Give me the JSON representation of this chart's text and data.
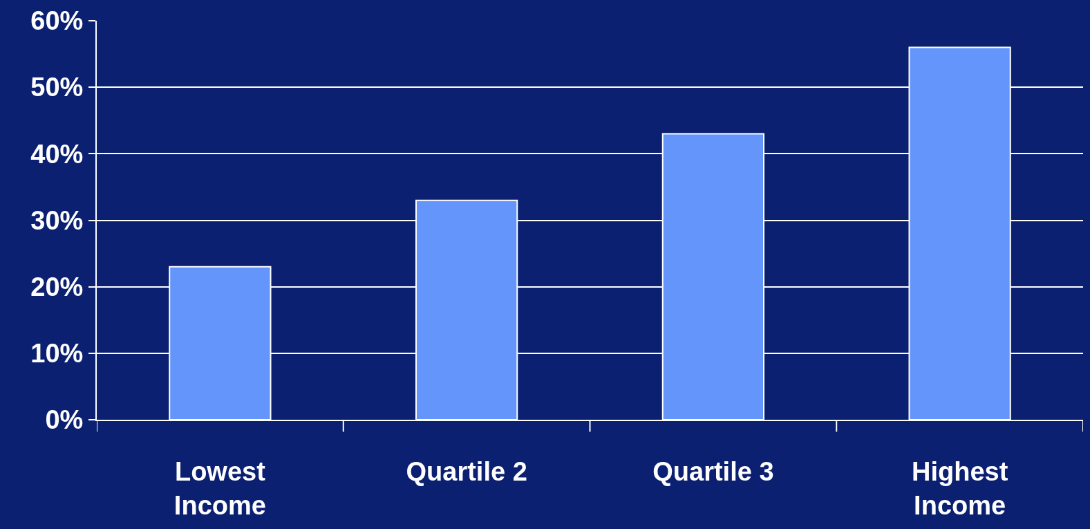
{
  "chart_data": {
    "type": "bar",
    "categories": [
      "Lowest Income",
      "Quartile 2",
      "Quartile 3",
      "Highest Income"
    ],
    "values": [
      23,
      33,
      43,
      56
    ],
    "color": "#6495fa",
    "ylim": [
      0,
      60
    ],
    "yticks": [
      {
        "value": 0,
        "label": "0%"
      },
      {
        "value": 10,
        "label": "10%"
      },
      {
        "value": 20,
        "label": "20%"
      },
      {
        "value": 30,
        "label": "30%"
      },
      {
        "value": 40,
        "label": "40%"
      },
      {
        "value": 50,
        "label": "50%"
      },
      {
        "value": 60,
        "label": "60%"
      }
    ],
    "grid": "y"
  }
}
